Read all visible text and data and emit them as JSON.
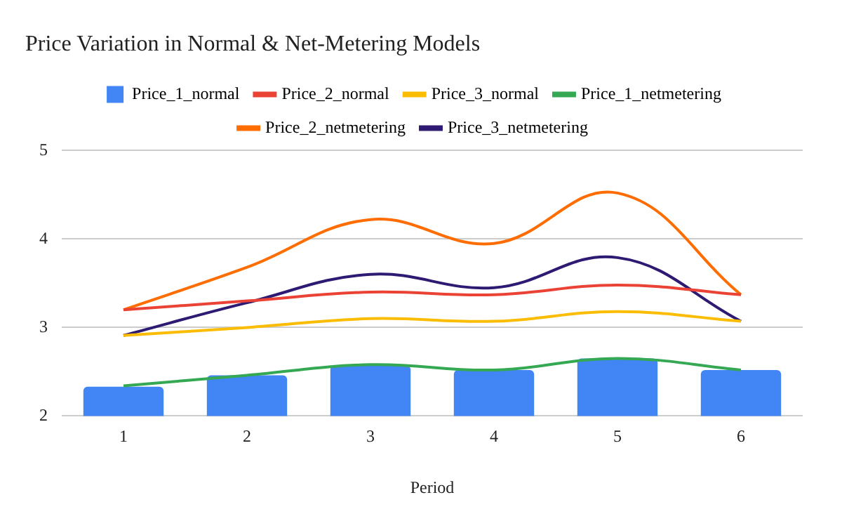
{
  "chart_data": {
    "type": "bar",
    "title": "Price Variation in Normal & Net-Metering Models",
    "xlabel": "Period",
    "categories": [
      "1",
      "2",
      "3",
      "4",
      "5",
      "6"
    ],
    "series": [
      {
        "name": "Price_1_normal",
        "color": "#4285f4",
        "values": [
          2.33,
          2.46,
          2.57,
          2.52,
          2.65,
          2.52
        ]
      },
      {
        "name": "Price_2_normal",
        "type": "line",
        "color": "#ea4335",
        "values": [
          3.2,
          3.3,
          3.4,
          3.37,
          3.48,
          3.37
        ]
      },
      {
        "name": "Price_3_normal",
        "type": "line",
        "color": "#fbbc04",
        "values": [
          2.91,
          3.0,
          3.1,
          3.07,
          3.18,
          3.07
        ]
      },
      {
        "name": "Price_1_netmetering",
        "type": "line",
        "color": "#34a853",
        "values": [
          2.34,
          2.46,
          2.58,
          2.52,
          2.65,
          2.52
        ]
      },
      {
        "name": "Price_2_netmetering",
        "type": "line",
        "color": "#ff6d01",
        "values": [
          3.2,
          3.68,
          4.22,
          3.95,
          4.52,
          3.37
        ]
      },
      {
        "name": "Price_3_netmetering",
        "type": "line",
        "color": "#2e1a72",
        "values": [
          2.91,
          3.28,
          3.6,
          3.45,
          3.79,
          3.07
        ]
      }
    ],
    "ylim": [
      2,
      5
    ],
    "yticks": [
      2,
      3,
      4,
      5
    ],
    "grid": "y",
    "legend": "top",
    "marker": "none",
    "line_style": "solid"
  }
}
